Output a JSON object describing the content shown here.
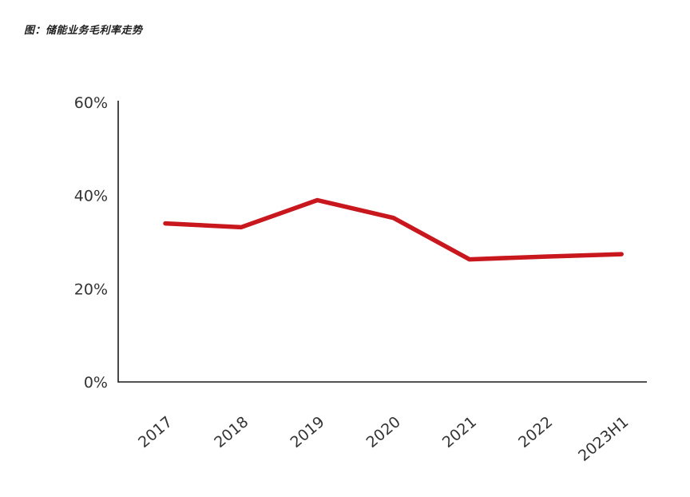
{
  "title": "图：储能业务毛利率走势",
  "chart_data": {
    "type": "line",
    "title": "储能业务毛利率走势",
    "categories": [
      "2017",
      "2018",
      "2019",
      "2020",
      "2021",
      "2022",
      "2023H1"
    ],
    "series": [
      {
        "name": "储能业务毛利率",
        "values": [
          34,
          33.2,
          39,
          35.2,
          26.3,
          26.9,
          27.4
        ],
        "color": "#c9171e"
      }
    ],
    "ylim": [
      0,
      60
    ],
    "yticks": [
      {
        "value": 0,
        "label": "0%"
      },
      {
        "value": 20,
        "label": "20%"
      },
      {
        "value": 40,
        "label": "40%"
      },
      {
        "value": 60,
        "label": "60%"
      }
    ],
    "xlabel": "",
    "ylabel": "",
    "grid": false,
    "legend": "none",
    "axis_color": "#1a1a1a",
    "tick_label_color": "#333333"
  }
}
